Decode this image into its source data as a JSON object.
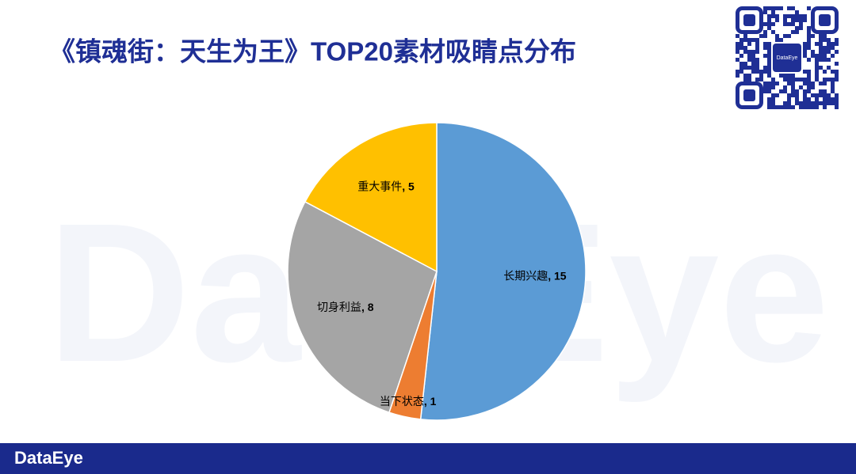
{
  "chart_data": {
    "type": "pie",
    "title": "《镇魂街：天生为王》TOP20素材吸睛点分布",
    "categories": [
      "长期兴趣",
      "当下状态",
      "切身利益",
      "重大事件"
    ],
    "values": [
      15,
      1,
      8,
      5
    ],
    "colors": [
      "#5b9bd5",
      "#ed7d31",
      "#a5a5a5",
      "#ffc000"
    ],
    "label_separator": ", "
  },
  "watermark": "DataEye",
  "qr_center_text": "DataEye",
  "footer": {
    "brand": "DataEye"
  }
}
